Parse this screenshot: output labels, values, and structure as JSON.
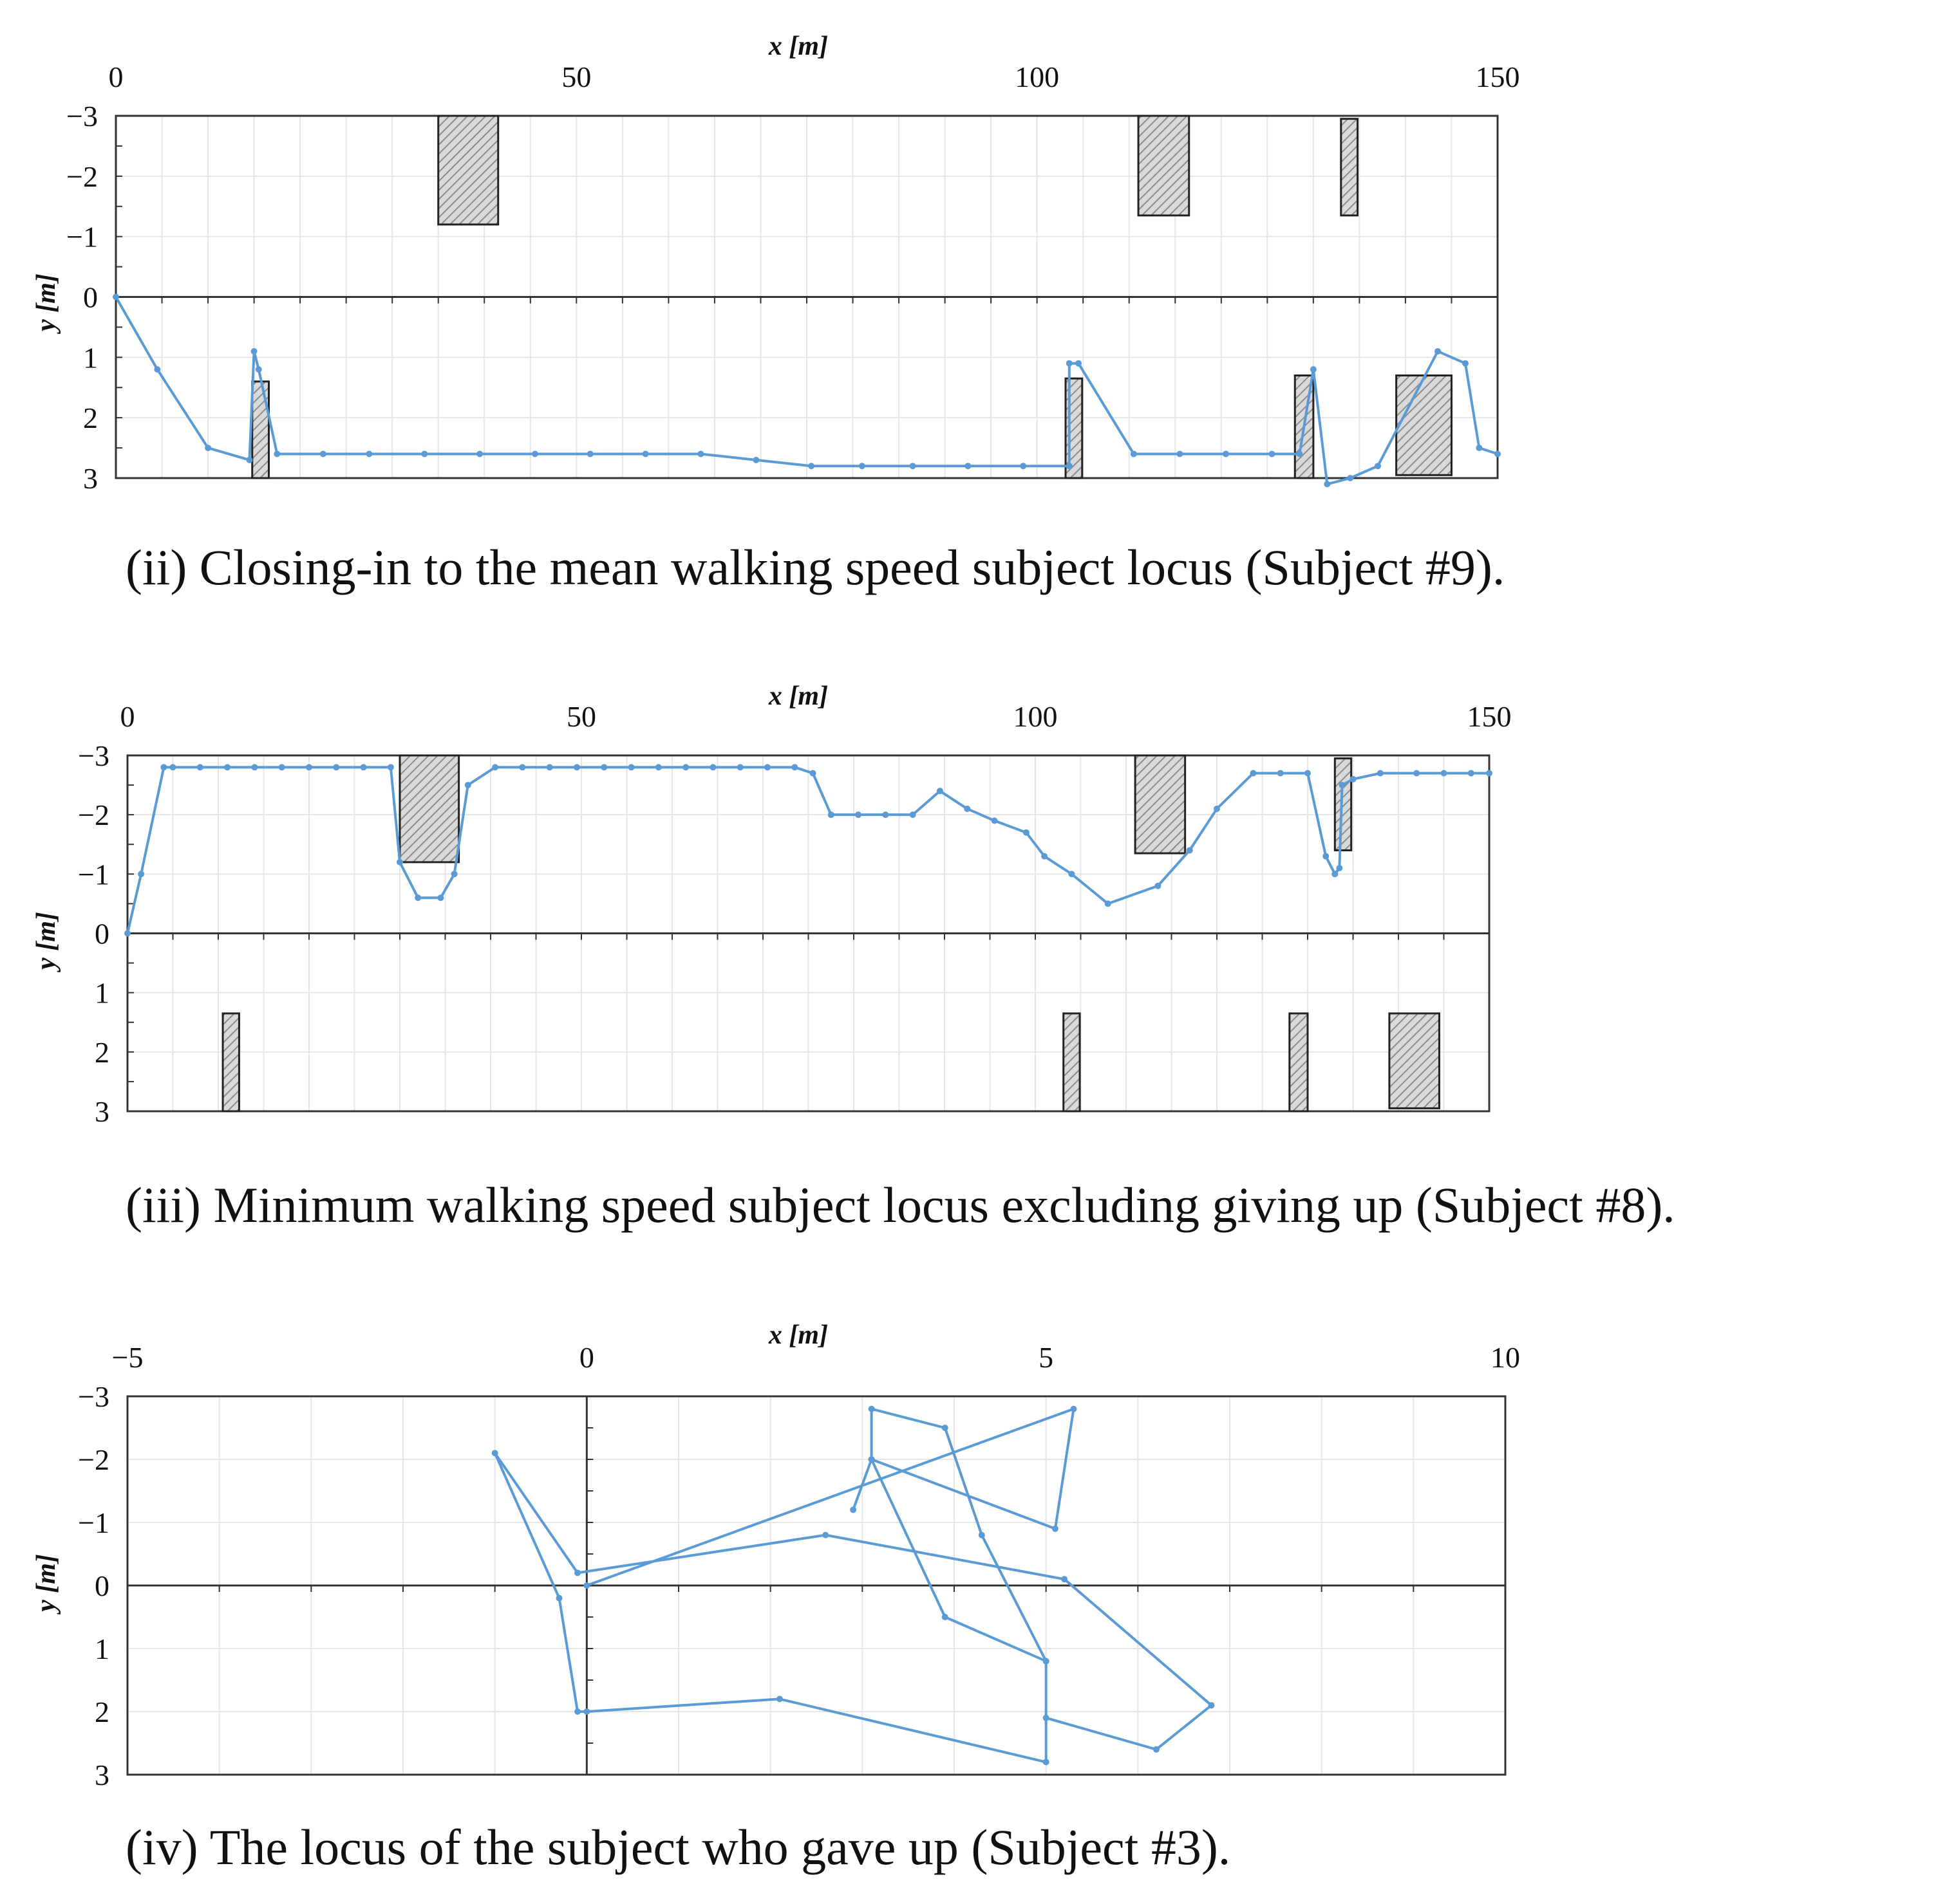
{
  "colors": {
    "series": "#5b9bd5",
    "grid": "#e6e6e6",
    "frame": "#333333",
    "obstacle_stroke": "#222222",
    "obstacle_fill": "#d9d9d9",
    "hatch": "#8c8c8c"
  },
  "chart_data": [
    {
      "type": "line",
      "title": "",
      "caption": "(ii) Closing-in to the mean walking speed subject locus (Subject #9).",
      "xlabel": "x [m]",
      "ylabel": "y [m]",
      "xlim": [
        0,
        150
      ],
      "ylim": [
        -3,
        3
      ],
      "y_inverted": true,
      "x_axis_position": "top",
      "x_ticks": [
        0,
        50,
        100,
        150
      ],
      "x_tick_labels": [
        "0",
        "50",
        "100",
        "150"
      ],
      "y_ticks": [
        -3,
        -2,
        -1,
        0,
        1,
        2,
        3
      ],
      "y_tick_labels": [
        "−3",
        "−2",
        "−1",
        "0",
        "1",
        "2",
        "3"
      ],
      "x_grid_step": 5,
      "y_grid_step": 1,
      "series": [
        {
          "name": "Subject #9",
          "x": [
            0,
            4.5,
            10,
            14.5,
            15,
            15.5,
            17.5,
            22.5,
            27.5,
            33.5,
            39.5,
            45.5,
            51.5,
            57.5,
            63.5,
            69.5,
            75.5,
            81,
            86.5,
            92.5,
            98.5,
            103.5,
            103.5,
            104.5,
            110.5,
            115.5,
            120.5,
            125.5,
            128.5,
            130,
            131.5,
            134,
            137,
            143.5,
            146.5,
            148,
            150
          ],
          "y": [
            0,
            1.2,
            2.5,
            2.7,
            0.9,
            1.2,
            2.6,
            2.6,
            2.6,
            2.6,
            2.6,
            2.6,
            2.6,
            2.6,
            2.6,
            2.7,
            2.8,
            2.8,
            2.8,
            2.8,
            2.8,
            2.8,
            1.1,
            1.1,
            2.6,
            2.6,
            2.6,
            2.6,
            2.6,
            1.2,
            3.1,
            3,
            2.8,
            0.9,
            1.1,
            2.5,
            2.6
          ]
        }
      ],
      "obstacles": [
        {
          "x": [
            35,
            41.5
          ],
          "y": [
            -3,
            -1.2
          ]
        },
        {
          "x": [
            111,
            116.5
          ],
          "y": [
            -3,
            -1.35
          ]
        },
        {
          "x": [
            133,
            134.8
          ],
          "y": [
            -2.95,
            -1.35
          ]
        },
        {
          "x": [
            14.8,
            16.6
          ],
          "y": [
            1.4,
            3
          ]
        },
        {
          "x": [
            103.1,
            104.9
          ],
          "y": [
            1.35,
            3
          ]
        },
        {
          "x": [
            128,
            130
          ],
          "y": [
            1.3,
            3
          ]
        },
        {
          "x": [
            139,
            145
          ],
          "y": [
            1.3,
            2.95
          ]
        }
      ]
    },
    {
      "type": "line",
      "title": "",
      "caption": "(iii) Minimum walking speed subject locus excluding giving up (Subject #8).",
      "xlabel": "x [m]",
      "ylabel": "y [m]",
      "xlim": [
        0,
        150
      ],
      "ylim": [
        -3,
        3
      ],
      "y_inverted": true,
      "x_axis_position": "top",
      "x_ticks": [
        0,
        50,
        100,
        150
      ],
      "x_tick_labels": [
        "0",
        "50",
        "100",
        "150"
      ],
      "y_ticks": [
        -3,
        -2,
        -1,
        0,
        1,
        2,
        3
      ],
      "y_tick_labels": [
        "−3",
        "−2",
        "−1",
        "0",
        "1",
        "2",
        "3"
      ],
      "x_grid_step": 5,
      "y_grid_step": 1,
      "series": [
        {
          "name": "Subject #8",
          "x": [
            0,
            1.5,
            4,
            5,
            8,
            11,
            14,
            17,
            20,
            23,
            26,
            29,
            30,
            32,
            34.5,
            36,
            37.5,
            40.5,
            43.5,
            46.5,
            49.5,
            52.5,
            55.5,
            58.5,
            61.5,
            64.5,
            67.5,
            70.5,
            73.5,
            75.5,
            77.5,
            80.5,
            83.5,
            86.5,
            89.5,
            92.5,
            95.5,
            99,
            101,
            104,
            108,
            113.5,
            117,
            120,
            124,
            127,
            130,
            132,
            133,
            133.5,
            133.8,
            135,
            138,
            142,
            145,
            148,
            150
          ],
          "y": [
            0,
            -1,
            -2.8,
            -2.8,
            -2.8,
            -2.8,
            -2.8,
            -2.8,
            -2.8,
            -2.8,
            -2.8,
            -2.8,
            -1.2,
            -0.6,
            -0.6,
            -1.0,
            -2.5,
            -2.8,
            -2.8,
            -2.8,
            -2.8,
            -2.8,
            -2.8,
            -2.8,
            -2.8,
            -2.8,
            -2.8,
            -2.8,
            -2.8,
            -2.7,
            -2.0,
            -2.0,
            -2.0,
            -2.0,
            -2.4,
            -2.1,
            -1.9,
            -1.7,
            -1.3,
            -1.0,
            -0.5,
            -0.8,
            -1.4,
            -2.1,
            -2.7,
            -2.7,
            -2.7,
            -1.3,
            -1.0,
            -1.1,
            -2.5,
            -2.6,
            -2.7,
            -2.7,
            -2.7,
            -2.7,
            -2.7
          ]
        }
      ],
      "obstacles": [
        {
          "x": [
            30,
            36.5
          ],
          "y": [
            -3,
            -1.2
          ]
        },
        {
          "x": [
            111,
            116.5
          ],
          "y": [
            -3,
            -1.35
          ]
        },
        {
          "x": [
            133,
            134.8
          ],
          "y": [
            -2.95,
            -1.4
          ]
        },
        {
          "x": [
            10.5,
            12.3
          ],
          "y": [
            1.35,
            3
          ]
        },
        {
          "x": [
            103.1,
            104.9
          ],
          "y": [
            1.35,
            3
          ]
        },
        {
          "x": [
            128,
            130
          ],
          "y": [
            1.35,
            3
          ]
        },
        {
          "x": [
            139,
            144.5
          ],
          "y": [
            1.35,
            2.95
          ]
        }
      ]
    },
    {
      "type": "line",
      "title": "",
      "caption": "(iv) The locus of the subject who gave up (Subject #3).",
      "xlabel": "x [m]",
      "ylabel": "y [m]",
      "xlim": [
        -5,
        10
      ],
      "ylim": [
        -3,
        3
      ],
      "y_inverted": true,
      "x_axis_position": "top",
      "x_ticks": [
        -5,
        0,
        5,
        10
      ],
      "x_tick_labels": [
        "−5",
        "0",
        "5",
        "10"
      ],
      "y_ticks": [
        -3,
        -2,
        -1,
        0,
        1,
        2,
        3
      ],
      "y_tick_labels": [
        "−3",
        "−2",
        "−1",
        "0",
        "1",
        "2",
        "3"
      ],
      "x_grid_step": 1,
      "y_grid_step": 1,
      "series": [
        {
          "name": "Subject #3",
          "x": [
            0,
            5.3,
            5.1,
            3.1,
            3.1,
            3.9,
            4.3,
            5.0,
            5.0,
            2.1,
            0,
            -0.1,
            -0.3,
            -1.0,
            -0.1,
            2.6,
            5.2,
            6.8,
            6.2,
            5.0,
            5.0,
            3.9,
            3.1,
            2.9
          ],
          "y": [
            0,
            -2.8,
            -0.9,
            -2.0,
            -2.8,
            -2.5,
            -0.8,
            1.2,
            2.8,
            1.8,
            2.0,
            2.0,
            0.2,
            -2.1,
            -0.2,
            -0.8,
            -0.1,
            1.9,
            2.6,
            2.1,
            1.2,
            0.5,
            -2.0,
            -1.2
          ]
        }
      ],
      "obstacles": []
    }
  ]
}
